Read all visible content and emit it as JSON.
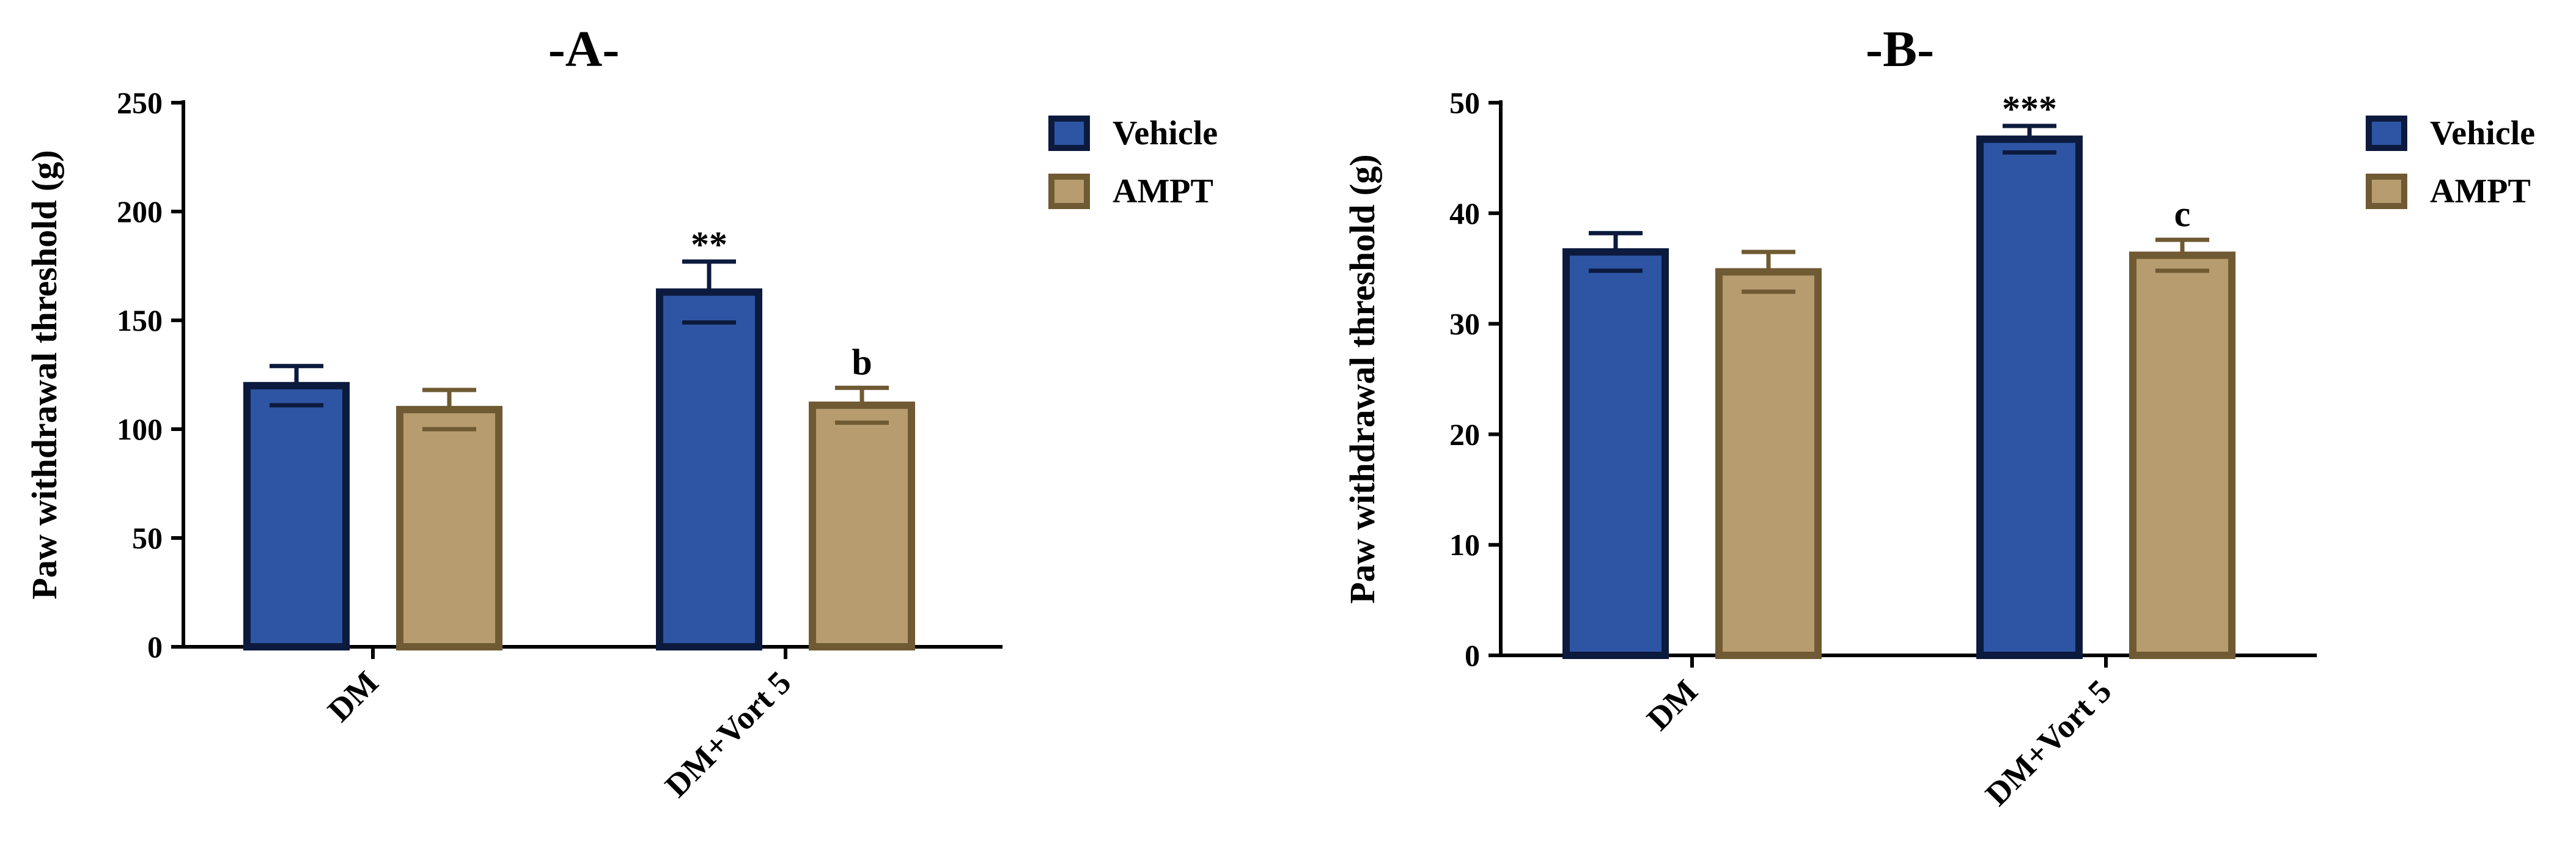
{
  "chart_data": [
    {
      "type": "bar",
      "title": "-A-",
      "xlabel": "",
      "ylabel": "Paw withdrawal threshold (g)",
      "ylim": [
        0,
        250
      ],
      "yticks": [
        0,
        50,
        100,
        150,
        200,
        250
      ],
      "categories": [
        "DM",
        "DM+Vort 5"
      ],
      "series": [
        {
          "name": "Vehicle",
          "values": [
            120,
            163
          ],
          "errors": [
            9,
            14
          ],
          "fill": "#2d55a3",
          "stroke": "#0c1a3d"
        },
        {
          "name": "AMPT",
          "values": [
            109,
            111
          ],
          "errors": [
            9,
            8
          ],
          "fill": "#b79c6f",
          "stroke": "#6f5a33"
        }
      ],
      "annotations": [
        {
          "series": 0,
          "category": 1,
          "text": "**"
        },
        {
          "series": 1,
          "category": 1,
          "text": "b"
        }
      ],
      "legend": "top-right"
    },
    {
      "type": "bar",
      "title": "-B-",
      "xlabel": "",
      "ylabel": "Paw withdrawal threshold (g)",
      "ylim": [
        0,
        50
      ],
      "yticks": [
        0,
        10,
        20,
        30,
        40,
        50
      ],
      "categories": [
        "DM",
        "DM+Vort 5"
      ],
      "series": [
        {
          "name": "Vehicle",
          "values": [
            36.5,
            46.7
          ],
          "errors": [
            1.7,
            1.2
          ],
          "fill": "#2d55a3",
          "stroke": "#0c1a3d"
        },
        {
          "name": "AMPT",
          "values": [
            34.7,
            36.2
          ],
          "errors": [
            1.8,
            1.4
          ],
          "fill": "#b79c6f",
          "stroke": "#6f5a33"
        }
      ],
      "annotations": [
        {
          "series": 0,
          "category": 1,
          "text": "***"
        },
        {
          "series": 1,
          "category": 1,
          "text": "c"
        }
      ],
      "legend": "top-right"
    }
  ]
}
